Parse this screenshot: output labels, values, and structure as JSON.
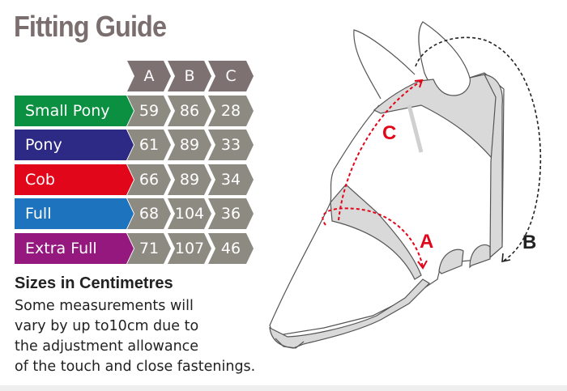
{
  "title": "Fitting Guide",
  "table": {
    "columns": [
      "A",
      "B",
      "C"
    ],
    "rows": [
      {
        "size": "Small Pony",
        "color": "#0a9040",
        "values": [
          "59",
          "86",
          "28"
        ]
      },
      {
        "size": "Pony",
        "color": "#2d2a85",
        "values": [
          "61",
          "89",
          "33"
        ]
      },
      {
        "size": "Cob",
        "color": "#e2061b",
        "values": [
          "66",
          "89",
          "34"
        ]
      },
      {
        "size": "Full",
        "color": "#1e73be",
        "values": [
          "68",
          "104",
          "36"
        ]
      },
      {
        "size": "Extra Full",
        "color": "#95187f",
        "values": [
          "71",
          "107",
          "46"
        ]
      }
    ]
  },
  "subtitle": "Sizes in Centimetres",
  "note": [
    "Some measurements will",
    "vary by up to10cm due to",
    "the adjustment allowance",
    "of the touch and close fastenings."
  ],
  "diagram": {
    "labels": {
      "a": "A",
      "b": "B",
      "c": "C"
    },
    "measure_color": "#e2061b"
  }
}
